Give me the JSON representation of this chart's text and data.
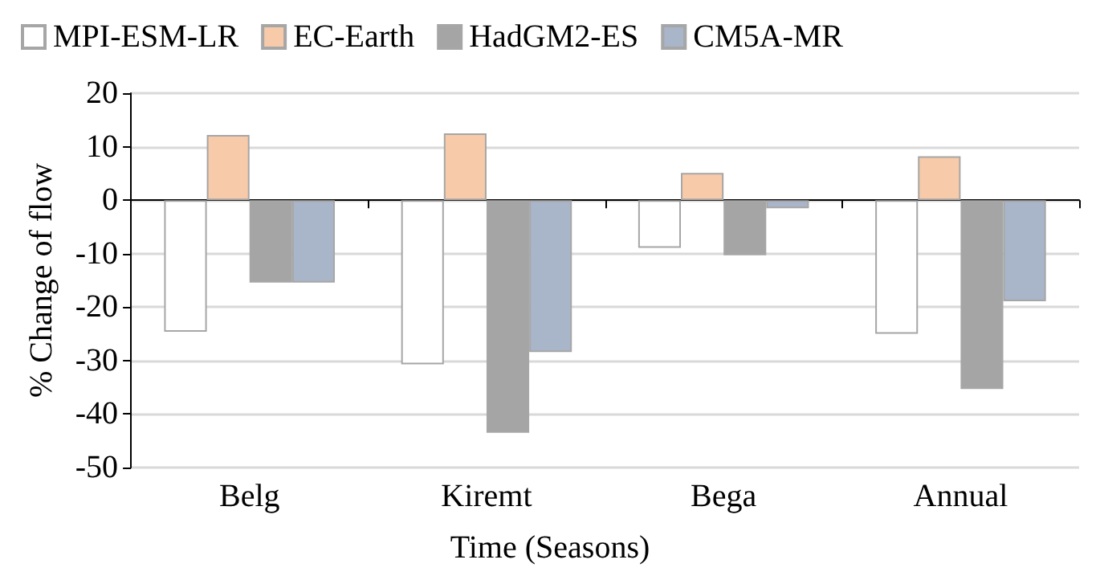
{
  "chart_data": {
    "type": "bar",
    "xlabel": "Time (Seasons)",
    "ylabel": "% Change of flow",
    "categories": [
      "Belg",
      "Kiremt",
      "Bega",
      "Annual"
    ],
    "series": [
      {
        "name": "MPI-ESM-LR",
        "color": "#ffffff",
        "values": [
          -24.6,
          -30.7,
          -8.9,
          -25
        ]
      },
      {
        "name": "EC-Earth",
        "color": "#f7caa9",
        "values": [
          12.2,
          12.5,
          5.1,
          8.2
        ]
      },
      {
        "name": "HadGM2-ES",
        "color": "#a5a5a5",
        "values": [
          -15.4,
          -43.5,
          -10.3,
          -35.3
        ]
      },
      {
        "name": "CM5A-MR",
        "color": "#a9b5c9",
        "values": [
          -15.4,
          -28.4,
          -1.5,
          -18.9
        ]
      }
    ],
    "ylim": [
      -50,
      20
    ],
    "yticks": [
      -50,
      -40,
      -30,
      -20,
      -10,
      0,
      10,
      20
    ],
    "grid": "y",
    "legend": "top"
  }
}
